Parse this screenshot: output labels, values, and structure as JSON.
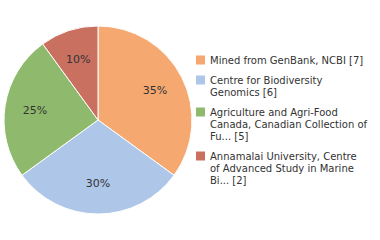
{
  "chart_data": {
    "type": "pie",
    "categories": [
      "Mined from GenBank, NCBI [7]",
      "Centre for Biodiversity\nGenomics [6]",
      "Agriculture and Agri-Food\nCanada, Canadian Collection of\nFu... [5]",
      "Annamalai University, Centre\nof Advanced Study in Marine\nBi... [2]"
    ],
    "values": [
      35,
      30,
      25,
      10
    ],
    "value_labels": [
      "35%",
      "30%",
      "25%",
      "10%"
    ],
    "colors": [
      "#f5a870",
      "#aec6e8",
      "#8fba6e",
      "#c97060"
    ],
    "data_labels": true,
    "legend": "right"
  }
}
